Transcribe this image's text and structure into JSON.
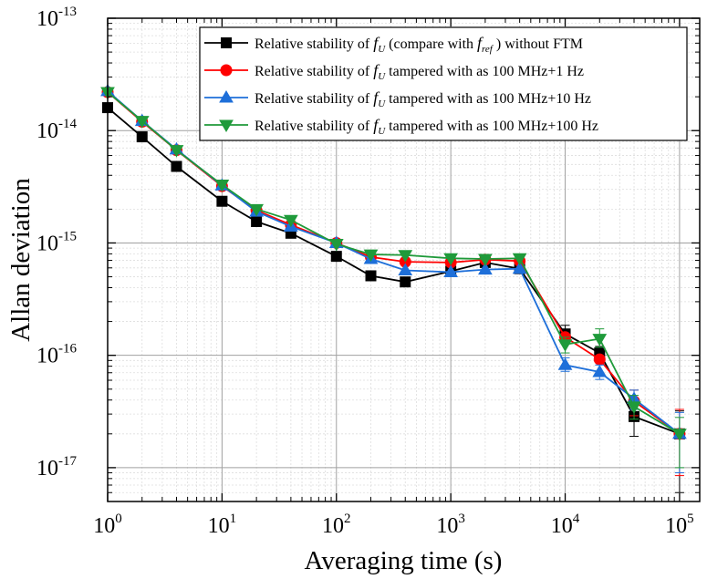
{
  "chart_data": {
    "type": "line",
    "xlabel": "Averaging time (s)",
    "ylabel": "Allan deviation",
    "x_scale": "log",
    "y_scale": "log",
    "xlim": [
      1,
      150000
    ],
    "ylim": [
      5e-18,
      1e-13
    ],
    "x_ticks": [
      {
        "base": "10",
        "exp": "0",
        "value": 1
      },
      {
        "base": "10",
        "exp": "1",
        "value": 10
      },
      {
        "base": "10",
        "exp": "2",
        "value": 100
      },
      {
        "base": "10",
        "exp": "3",
        "value": 1000
      },
      {
        "base": "10",
        "exp": "4",
        "value": 10000
      },
      {
        "base": "10",
        "exp": "5",
        "value": 100000
      }
    ],
    "y_ticks": [
      {
        "base": "10",
        "exp": "-17",
        "value": 1e-17
      },
      {
        "base": "10",
        "exp": "-16",
        "value": 1e-16
      },
      {
        "base": "10",
        "exp": "-15",
        "value": 1e-15
      },
      {
        "base": "10",
        "exp": "-14",
        "value": 1e-14
      },
      {
        "base": "10",
        "exp": "-13",
        "value": 1e-13
      }
    ],
    "grid": true,
    "legend_position": "top-right",
    "x": [
      1,
      2,
      4,
      10,
      20,
      40,
      100,
      200,
      400,
      1000,
      2000,
      4000,
      10000,
      20000,
      40000,
      100000
    ],
    "series": [
      {
        "name_parts": [
          "Relative stability of ",
          "f",
          "U",
          " (compare with ",
          "f",
          "ref",
          " ) without FTM"
        ],
        "color": "#000000",
        "marker": "square",
        "values": [
          1.6e-14,
          8.8e-15,
          4.8e-15,
          2.35e-15,
          1.55e-15,
          1.22e-15,
          7.6e-16,
          5.1e-16,
          4.5e-16,
          5.6e-16,
          6.7e-16,
          5.9e-16,
          1.55e-16,
          1.05e-16,
          2.85e-17,
          2e-17
        ],
        "err_up": [
          0,
          0,
          0,
          0,
          0,
          0,
          0,
          0,
          0,
          0,
          0,
          0,
          1.85e-16,
          1.2e-16,
          3.8e-17,
          3.2e-17
        ],
        "err_down": [
          0,
          0,
          0,
          0,
          0,
          0,
          0,
          0,
          0,
          0,
          0,
          0,
          1.3e-16,
          9e-17,
          1.9e-17,
          6e-18
        ]
      },
      {
        "name_parts": [
          "Relative stability of ",
          "f",
          "U",
          " tampered with as 100 MHz+1 Hz"
        ],
        "color": "#ff0000",
        "marker": "circle",
        "values": [
          2.2e-14,
          1.2e-14,
          6.7e-15,
          3.2e-15,
          1.95e-15,
          1.45e-15,
          1e-15,
          7.5e-16,
          6.8e-16,
          6.7e-16,
          7.1e-16,
          6.9e-16,
          1.45e-16,
          9.2e-17,
          3.9e-17,
          2e-17
        ],
        "err_up": [
          0,
          0,
          0,
          0,
          0,
          0,
          0,
          0,
          0,
          0,
          0,
          0,
          0,
          0,
          4.9e-17,
          3.3e-17
        ],
        "err_down": [
          0,
          0,
          0,
          0,
          0,
          0,
          0,
          0,
          0,
          0,
          0,
          0,
          0,
          0,
          2.9e-17,
          8.5e-18
        ]
      },
      {
        "name_parts": [
          "Relative stability of ",
          "f",
          "U",
          " tampered with as 100 MHz+10 Hz"
        ],
        "color": "#1e6fd9",
        "marker": "triangle-up",
        "values": [
          2.25e-14,
          1.22e-14,
          6.8e-15,
          3.25e-15,
          1.9e-15,
          1.4e-15,
          1e-15,
          7.2e-16,
          5.7e-16,
          5.5e-16,
          5.8e-16,
          5.9e-16,
          8.2e-17,
          7.1e-17,
          4.1e-17,
          2e-17
        ],
        "err_up": [
          0,
          0,
          0,
          0,
          0,
          0,
          0,
          0,
          0,
          0,
          0,
          0,
          9.5e-17,
          8.2e-17,
          4.9e-17,
          3.1e-17
        ],
        "err_down": [
          0,
          0,
          0,
          0,
          0,
          0,
          0,
          0,
          0,
          0,
          0,
          0,
          7.2e-17,
          6.1e-17,
          3.3e-17,
          9e-18
        ]
      },
      {
        "name_parts": [
          "Relative stability of ",
          "f",
          "U",
          " tampered with as 100 MHz+100 Hz"
        ],
        "color": "#1f9a3a",
        "marker": "triangle-down",
        "values": [
          2.2e-14,
          1.22e-14,
          6.7e-15,
          3.3e-15,
          2e-15,
          1.6e-15,
          9.8e-16,
          7.9e-16,
          7.8e-16,
          7.3e-16,
          7.2e-16,
          7.3e-16,
          1.25e-16,
          1.4e-16,
          3.5e-17,
          2e-17
        ],
        "err_up": [
          0,
          0,
          0,
          0,
          0,
          0,
          0,
          0,
          0,
          0,
          0,
          0,
          1.45e-16,
          1.72e-16,
          4.4e-17,
          2.8e-17
        ],
        "err_down": [
          0,
          0,
          0,
          0,
          0,
          0,
          0,
          0,
          0,
          0,
          0,
          0,
          1.05e-16,
          1.18e-16,
          2.7e-17,
          1e-17
        ]
      }
    ]
  }
}
